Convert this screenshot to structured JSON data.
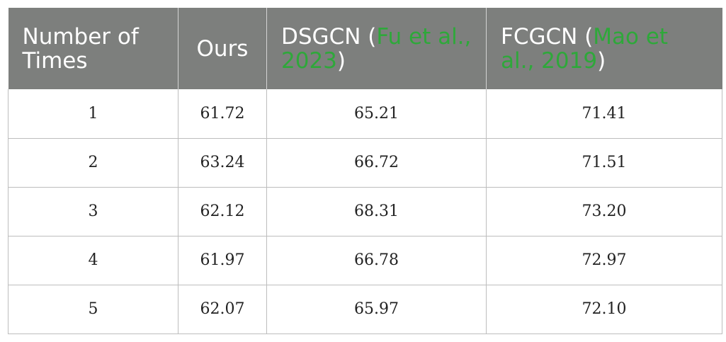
{
  "table": {
    "headers": {
      "col1": "Number of Times",
      "col2": "Ours",
      "col3_name": "DSGCN (",
      "col3_cite": "Fu et al., 2023",
      "col3_close": ")",
      "col4_name": "FCGCN (",
      "col4_cite": "Mao et al., 2019",
      "col4_close": ")"
    },
    "rows": [
      [
        "1",
        "61.72",
        "65.21",
        "71.41"
      ],
      [
        "2",
        "63.24",
        "66.72",
        "71.51"
      ],
      [
        "3",
        "62.12",
        "68.31",
        "73.20"
      ],
      [
        "4",
        "61.97",
        "66.78",
        "72.97"
      ],
      [
        "5",
        "62.07",
        "65.97",
        "72.10"
      ]
    ]
  },
  "colors": {
    "header_bg": "#7d7f7d",
    "header_text": "#ffffff",
    "citation_link": "#2ea83a",
    "grid_line": "#bdbdbd"
  }
}
